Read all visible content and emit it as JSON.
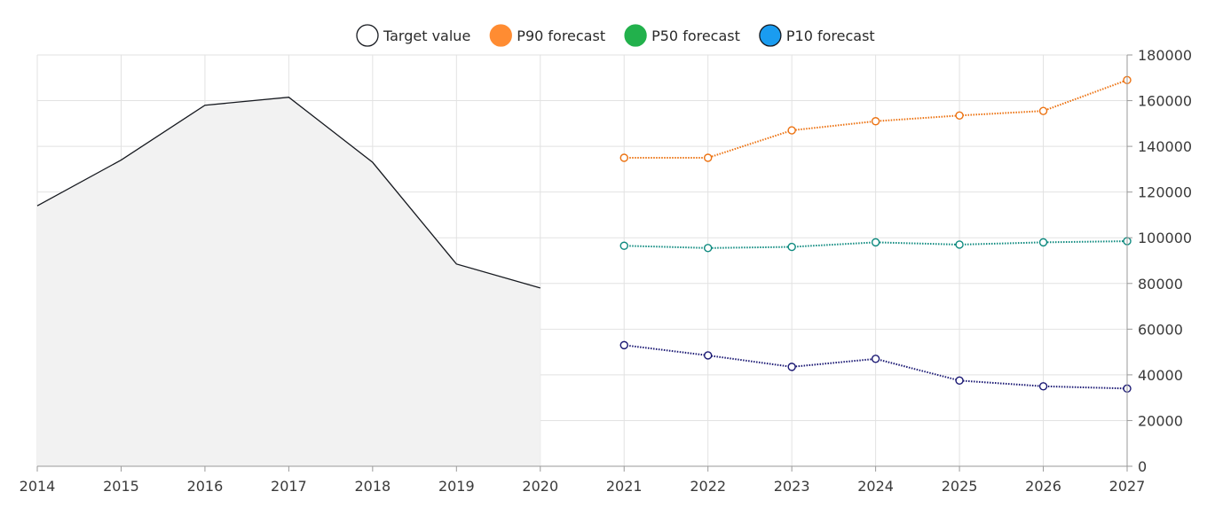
{
  "chart_data": {
    "type": "line",
    "title": "",
    "xlabel": "",
    "ylabel": "",
    "xlim": [
      2014,
      2027
    ],
    "ylim": [
      0,
      180000
    ],
    "grid": true,
    "y_axis_side": "right",
    "legend_placement": "top-center",
    "x_ticks": [
      "2014",
      "2015",
      "2016",
      "2017",
      "2018",
      "2019",
      "2020",
      "2021",
      "2022",
      "2023",
      "2024",
      "2025",
      "2026",
      "2027"
    ],
    "y_ticks": [
      "0",
      "20000",
      "40000",
      "60000",
      "80000",
      "100000",
      "120000",
      "140000",
      "160000",
      "180000"
    ],
    "series": [
      {
        "name": "Target value",
        "style": "area",
        "color": "#16191f",
        "fill": "#f2f2f2",
        "x": [
          2014,
          2015,
          2016,
          2017,
          2018,
          2019,
          2020
        ],
        "values": [
          114000,
          134000,
          158000,
          161500,
          133000,
          88500,
          78000
        ]
      },
      {
        "name": "P90 forecast",
        "style": "dotted-markers",
        "color": "#ec7211",
        "x": [
          2021,
          2022,
          2023,
          2024,
          2025,
          2026,
          2027
        ],
        "values": [
          135000,
          135000,
          147000,
          151000,
          153500,
          155500,
          169000
        ]
      },
      {
        "name": "P50 forecast",
        "style": "dotted-markers",
        "color": "#0e8a7f",
        "x": [
          2021,
          2022,
          2023,
          2024,
          2025,
          2026,
          2027
        ],
        "values": [
          96500,
          95500,
          96000,
          98000,
          97000,
          98000,
          98500
        ]
      },
      {
        "name": "P10 forecast",
        "style": "dotted-markers",
        "color": "#1a1873",
        "x": [
          2021,
          2022,
          2023,
          2024,
          2025,
          2026,
          2027
        ],
        "values": [
          53000,
          48500,
          43500,
          47000,
          37500,
          35000,
          34000
        ]
      }
    ],
    "legend": [
      {
        "label": "Target value",
        "icon_fill": "#ffffff",
        "icon_stroke": "#16191f"
      },
      {
        "label": "P90 forecast",
        "icon_fill": "#ff8c32",
        "icon_stroke": "#ff8c32"
      },
      {
        "label": "P50 forecast",
        "icon_fill": "#22b14c",
        "icon_stroke": "#22b14c"
      },
      {
        "label": "P10 forecast",
        "icon_fill": "#1a9cf0",
        "icon_stroke": "#16191f"
      }
    ],
    "colors": {
      "grid": "#e2e2e2",
      "axis": "#9a9a9a",
      "marker_fill": "#ffffff"
    }
  }
}
